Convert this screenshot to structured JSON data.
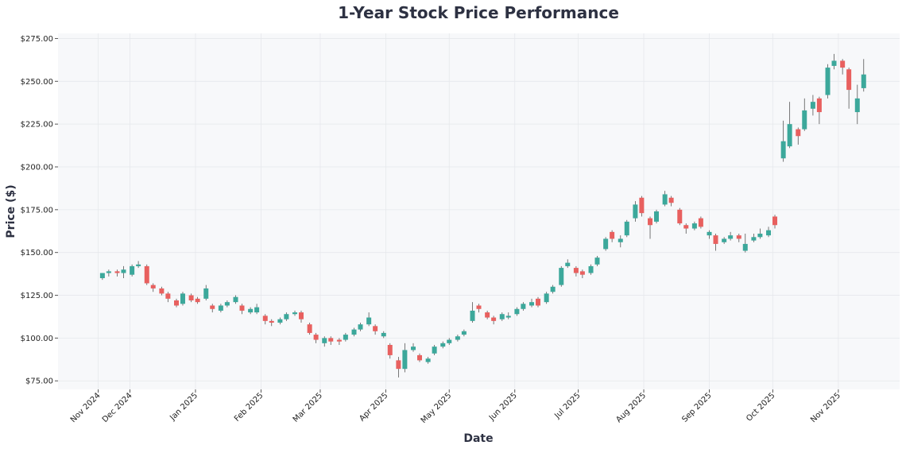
{
  "chart_data": {
    "type": "candlestick",
    "title": "1-Year Stock Price Performance",
    "xlabel": "Date",
    "ylabel": "Price ($)",
    "ylim": [
      70,
      278
    ],
    "y_ticks": [
      75,
      100,
      125,
      150,
      175,
      200,
      225,
      250,
      275
    ],
    "y_tick_labels": [
      "$75.00",
      "$100.00",
      "$125.00",
      "$150.00",
      "$175.00",
      "$200.00",
      "$225.00",
      "$250.00",
      "$275.00"
    ],
    "x_range": [
      "2024-10-28",
      "2025-11-30"
    ],
    "x_ticks": [
      {
        "date": "2024-11-16",
        "label": "Nov 2024"
      },
      {
        "date": "2024-12-01",
        "label": "Dec 2024"
      },
      {
        "date": "2025-01-01",
        "label": "Jan 2025"
      },
      {
        "date": "2025-02-01",
        "label": "Feb 2025"
      },
      {
        "date": "2025-03-01",
        "label": "Mar 2025"
      },
      {
        "date": "2025-04-01",
        "label": "Apr 2025"
      },
      {
        "date": "2025-05-01",
        "label": "May 2025"
      },
      {
        "date": "2025-06-01",
        "label": "Jun 2025"
      },
      {
        "date": "2025-07-01",
        "label": "Jul 2025"
      },
      {
        "date": "2025-08-01",
        "label": "Aug 2025"
      },
      {
        "date": "2025-09-01",
        "label": "Sep 2025"
      },
      {
        "date": "2025-10-01",
        "label": "Oct 2025"
      },
      {
        "date": "2025-11-01",
        "label": "Nov 2025"
      }
    ],
    "grid": true,
    "colors": {
      "up": "#3ca89b",
      "down": "#e8605f",
      "background": "#f7f8fa",
      "grid": "#e6e8ec",
      "text": "#2d3142"
    },
    "columns": [
      "date",
      "open",
      "high",
      "low",
      "close"
    ],
    "candles": [
      [
        "2024-11-18",
        135,
        138,
        134,
        138
      ],
      [
        "2024-11-21",
        138,
        140,
        136,
        139
      ],
      [
        "2024-11-25",
        139,
        140,
        136,
        138
      ],
      [
        "2024-11-28",
        138,
        142,
        135,
        140
      ],
      [
        "2024-12-02",
        137,
        143,
        136,
        142
      ],
      [
        "2024-12-05",
        142,
        145,
        141,
        143
      ],
      [
        "2024-12-09",
        142,
        143,
        131,
        132
      ],
      [
        "2024-12-12",
        131,
        132,
        127,
        129
      ],
      [
        "2024-12-16",
        129,
        130,
        125,
        126
      ],
      [
        "2024-12-19",
        126,
        127,
        121,
        123
      ],
      [
        "2024-12-23",
        122,
        123,
        118,
        119
      ],
      [
        "2024-12-26",
        120,
        127,
        119,
        126
      ],
      [
        "2024-12-30",
        125,
        126,
        121,
        122
      ],
      [
        "2025-01-02",
        123,
        124,
        120,
        121
      ],
      [
        "2025-01-06",
        123,
        131,
        122,
        129
      ],
      [
        "2025-01-09",
        119,
        120,
        115,
        117
      ],
      [
        "2025-01-13",
        116,
        120,
        115,
        119
      ],
      [
        "2025-01-16",
        119,
        122,
        118,
        121
      ],
      [
        "2025-01-20",
        121,
        125,
        120,
        124
      ],
      [
        "2025-01-23",
        119,
        120,
        114,
        116
      ],
      [
        "2025-01-27",
        115,
        118,
        114,
        117
      ],
      [
        "2025-01-30",
        115,
        120,
        114,
        118
      ],
      [
        "2025-02-03",
        113,
        114,
        108,
        110
      ],
      [
        "2025-02-06",
        110,
        111,
        107,
        109
      ],
      [
        "2025-02-10",
        109,
        112,
        108,
        111
      ],
      [
        "2025-02-13",
        111,
        115,
        110,
        114
      ],
      [
        "2025-02-17",
        114,
        116,
        113,
        115
      ],
      [
        "2025-02-20",
        115,
        116,
        109,
        111
      ],
      [
        "2025-02-24",
        108,
        109,
        102,
        103
      ],
      [
        "2025-02-27",
        102,
        103,
        97,
        99
      ],
      [
        "2025-03-03",
        97,
        101,
        95,
        100
      ],
      [
        "2025-03-06",
        100,
        101,
        96,
        98
      ],
      [
        "2025-03-10",
        99,
        100,
        96,
        98
      ],
      [
        "2025-03-13",
        99,
        103,
        98,
        102
      ],
      [
        "2025-03-17",
        102,
        106,
        101,
        105
      ],
      [
        "2025-03-20",
        105,
        109,
        104,
        108
      ],
      [
        "2025-03-24",
        108,
        115,
        107,
        112
      ],
      [
        "2025-03-27",
        107,
        108,
        102,
        104
      ],
      [
        "2025-03-31",
        101,
        104,
        100,
        103
      ],
      [
        "2025-04-03",
        96,
        97,
        88,
        90
      ],
      [
        "2025-04-07",
        87,
        89,
        77,
        82
      ],
      [
        "2025-04-10",
        82,
        97,
        80,
        93
      ],
      [
        "2025-04-14",
        93,
        97,
        92,
        95
      ],
      [
        "2025-04-17",
        90,
        91,
        86,
        87
      ],
      [
        "2025-04-21",
        86,
        89,
        85,
        88
      ],
      [
        "2025-04-24",
        91,
        96,
        90,
        95
      ],
      [
        "2025-04-28",
        95,
        98,
        94,
        97
      ],
      [
        "2025-05-01",
        97,
        100,
        96,
        99
      ],
      [
        "2025-05-05",
        99,
        102,
        98,
        101
      ],
      [
        "2025-05-08",
        102,
        105,
        101,
        104
      ],
      [
        "2025-05-12",
        110,
        121,
        109,
        116
      ],
      [
        "2025-05-15",
        119,
        120,
        115,
        117
      ],
      [
        "2025-05-19",
        115,
        116,
        111,
        112
      ],
      [
        "2025-05-22",
        112,
        113,
        108,
        110
      ],
      [
        "2025-05-26",
        111,
        115,
        110,
        114
      ],
      [
        "2025-05-29",
        112,
        115,
        111,
        113
      ],
      [
        "2025-06-02",
        114,
        118,
        113,
        117
      ],
      [
        "2025-06-05",
        117,
        121,
        116,
        120
      ],
      [
        "2025-06-09",
        119,
        123,
        118,
        121
      ],
      [
        "2025-06-12",
        123,
        124,
        118,
        119
      ],
      [
        "2025-06-16",
        121,
        127,
        120,
        126
      ],
      [
        "2025-06-19",
        127,
        131,
        126,
        130
      ],
      [
        "2025-06-23",
        131,
        142,
        130,
        141
      ],
      [
        "2025-06-26",
        142,
        146,
        141,
        144
      ],
      [
        "2025-06-30",
        141,
        142,
        136,
        138
      ],
      [
        "2025-07-03",
        139,
        140,
        135,
        137
      ],
      [
        "2025-07-07",
        138,
        143,
        137,
        142
      ],
      [
        "2025-07-10",
        143,
        148,
        142,
        147
      ],
      [
        "2025-07-14",
        152,
        159,
        151,
        158
      ],
      [
        "2025-07-17",
        162,
        163,
        156,
        158
      ],
      [
        "2025-07-21",
        156,
        160,
        153,
        158
      ],
      [
        "2025-07-24",
        160,
        169,
        159,
        168
      ],
      [
        "2025-07-28",
        170,
        180,
        168,
        178
      ],
      [
        "2025-07-31",
        182,
        183,
        171,
        173
      ],
      [
        "2025-08-04",
        170,
        171,
        158,
        166
      ],
      [
        "2025-08-07",
        168,
        175,
        167,
        174
      ],
      [
        "2025-08-11",
        178,
        186,
        177,
        184
      ],
      [
        "2025-08-14",
        182,
        183,
        177,
        179
      ],
      [
        "2025-08-18",
        175,
        176,
        166,
        167
      ],
      [
        "2025-08-21",
        166,
        167,
        161,
        164
      ],
      [
        "2025-08-25",
        164,
        168,
        163,
        167
      ],
      [
        "2025-08-28",
        170,
        171,
        164,
        165
      ],
      [
        "2025-09-01",
        160,
        163,
        158,
        162
      ],
      [
        "2025-09-04",
        160,
        161,
        151,
        155
      ],
      [
        "2025-09-08",
        156,
        159,
        155,
        158
      ],
      [
        "2025-09-11",
        158,
        162,
        157,
        160
      ],
      [
        "2025-09-15",
        160,
        161,
        156,
        158
      ],
      [
        "2025-09-18",
        151,
        161,
        150,
        155
      ],
      [
        "2025-09-22",
        157,
        161,
        156,
        159
      ],
      [
        "2025-09-25",
        159,
        164,
        158,
        161
      ],
      [
        "2025-09-29",
        160,
        165,
        159,
        163
      ],
      [
        "2025-10-02",
        171,
        172,
        164,
        166
      ],
      [
        "2025-10-06",
        205,
        227,
        203,
        215
      ],
      [
        "2025-10-09",
        212,
        238,
        211,
        225
      ],
      [
        "2025-10-13",
        222,
        223,
        213,
        218
      ],
      [
        "2025-10-16",
        222,
        240,
        221,
        233
      ],
      [
        "2025-10-20",
        234,
        242,
        230,
        238
      ],
      [
        "2025-10-23",
        240,
        241,
        225,
        232
      ],
      [
        "2025-10-27",
        242,
        260,
        240,
        258
      ],
      [
        "2025-10-30",
        259,
        266,
        257,
        262
      ],
      [
        "2025-11-03",
        262,
        263,
        254,
        258
      ],
      [
        "2025-11-06",
        257,
        258,
        234,
        245
      ],
      [
        "2025-11-10",
        232,
        248,
        225,
        240
      ],
      [
        "2025-11-13",
        246,
        263,
        244,
        254
      ]
    ]
  }
}
